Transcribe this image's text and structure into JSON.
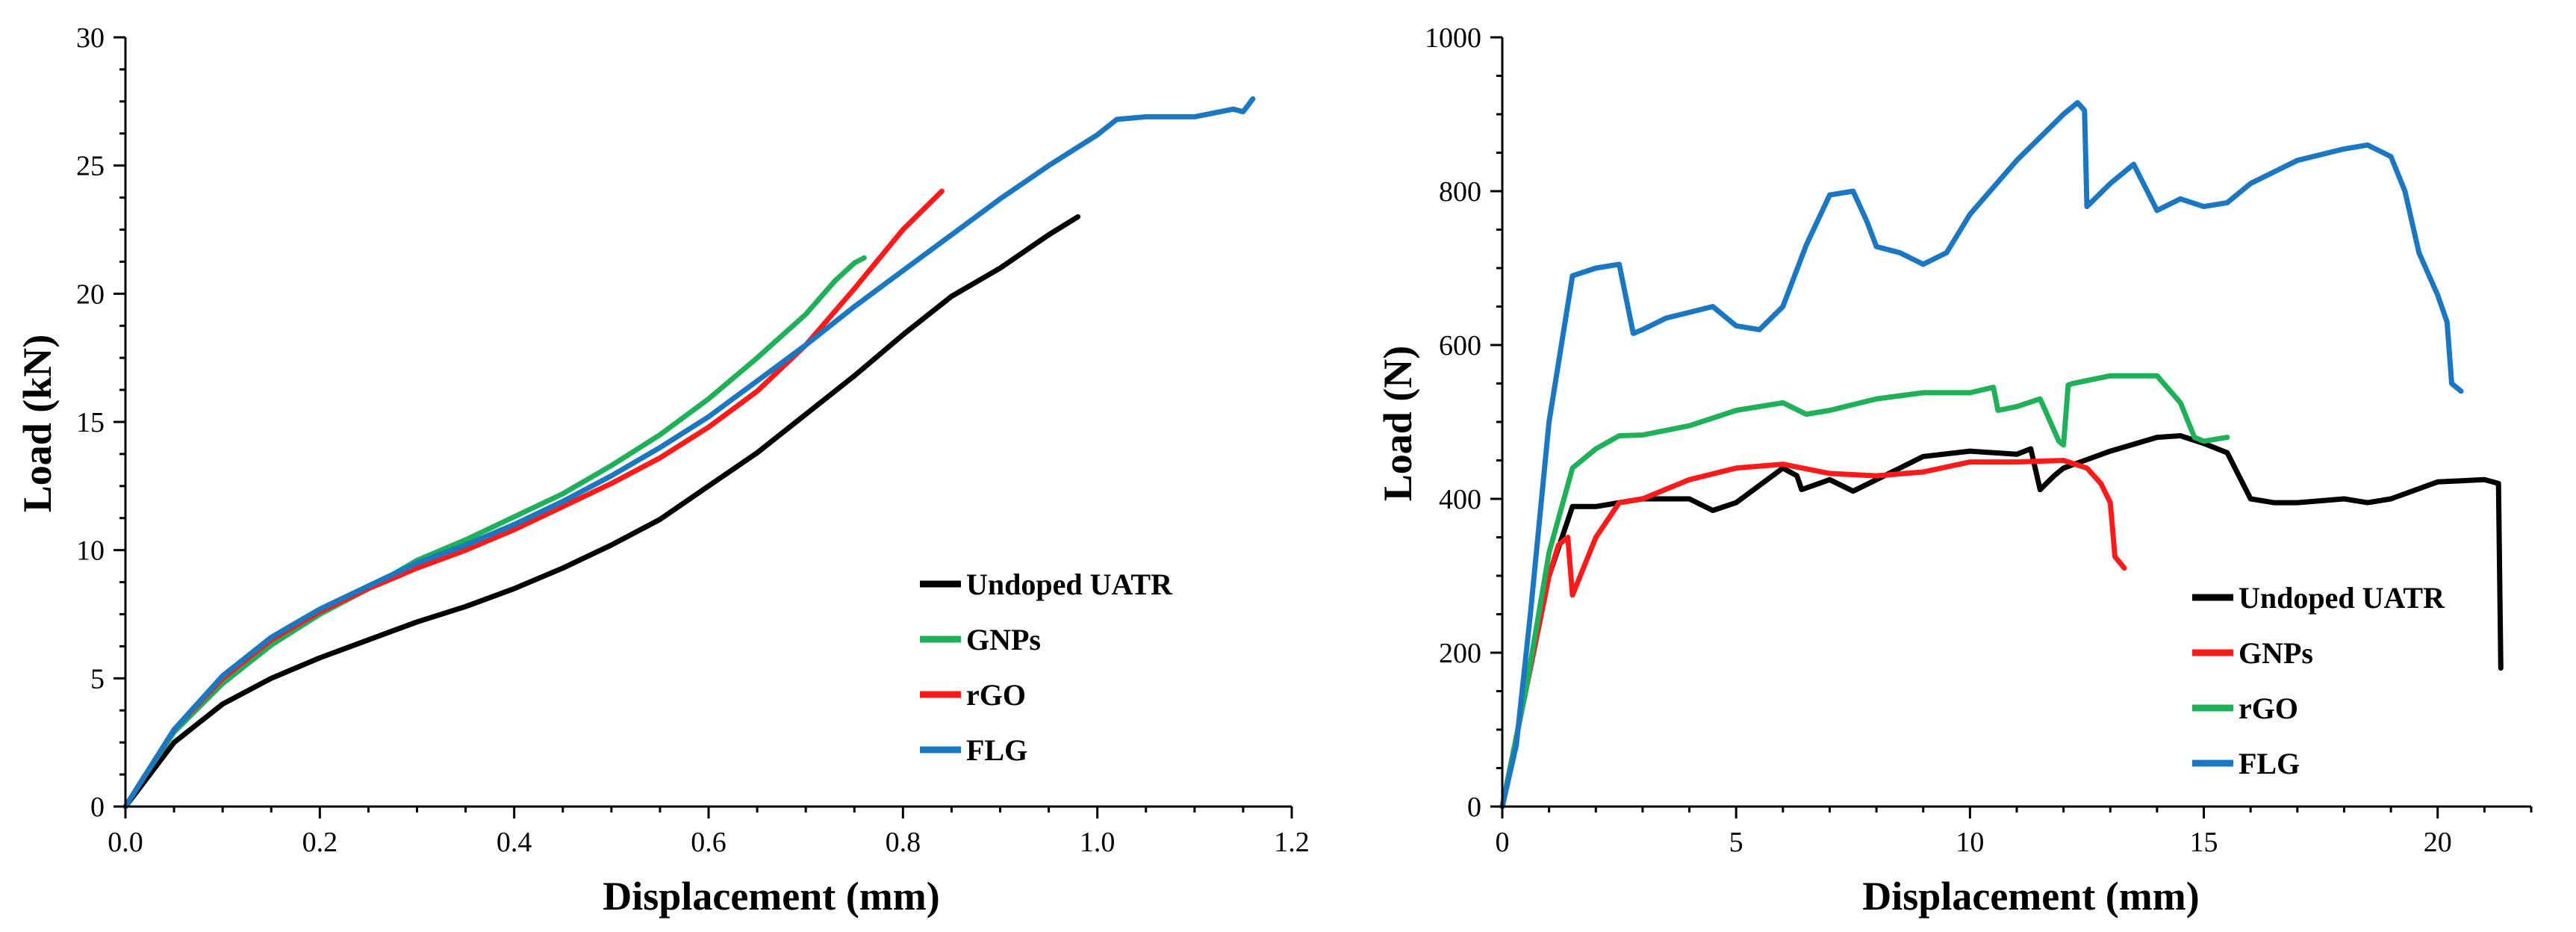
{
  "chart_data": [
    {
      "type": "line",
      "title": "",
      "xlabel": "Displacement (mm)",
      "ylabel": "Load (kN)",
      "xlim": [
        0,
        1.2
      ],
      "ylim": [
        0,
        30
      ],
      "xticks": [
        0,
        0.2,
        0.4,
        0.6,
        0.8,
        1.0,
        1.2
      ],
      "xtick_labels": [
        "0.0",
        "0.2",
        "0.4",
        "0.6",
        "0.8",
        "1.0",
        "1.2"
      ],
      "yticks": [
        0,
        5,
        10,
        15,
        20,
        25,
        30
      ],
      "ytick_labels": [
        "0",
        "5",
        "10",
        "15",
        "20",
        "25",
        "30"
      ],
      "grid": false,
      "legend_position": "bottom-right",
      "series": [
        {
          "name": "Undoped UATR",
          "color": "#000000",
          "x": [
            0,
            0.02,
            0.05,
            0.1,
            0.15,
            0.2,
            0.25,
            0.3,
            0.35,
            0.4,
            0.45,
            0.5,
            0.55,
            0.6,
            0.65,
            0.7,
            0.75,
            0.8,
            0.85,
            0.9,
            0.95,
            0.98
          ],
          "y": [
            0,
            1.0,
            2.5,
            4.0,
            5.0,
            5.8,
            6.5,
            7.2,
            7.8,
            8.5,
            9.3,
            10.2,
            11.2,
            12.5,
            13.8,
            15.3,
            16.8,
            18.4,
            19.9,
            21.0,
            22.3,
            23.0
          ]
        },
        {
          "name": "GNPs",
          "color": "#1fb15a",
          "x": [
            0,
            0.02,
            0.05,
            0.1,
            0.15,
            0.2,
            0.25,
            0.3,
            0.35,
            0.4,
            0.45,
            0.5,
            0.55,
            0.6,
            0.65,
            0.7,
            0.73,
            0.75,
            0.76
          ],
          "y": [
            0,
            1.2,
            2.9,
            4.8,
            6.3,
            7.5,
            8.5,
            9.6,
            10.4,
            11.3,
            12.2,
            13.3,
            14.5,
            15.9,
            17.5,
            19.2,
            20.5,
            21.2,
            21.4
          ]
        },
        {
          "name": "rGO",
          "color": "#ff1a1a",
          "x": [
            0,
            0.02,
            0.05,
            0.1,
            0.15,
            0.2,
            0.25,
            0.3,
            0.35,
            0.4,
            0.45,
            0.5,
            0.55,
            0.6,
            0.65,
            0.7,
            0.75,
            0.8,
            0.84
          ],
          "y": [
            0,
            1.2,
            3.0,
            5.0,
            6.5,
            7.6,
            8.5,
            9.3,
            10.0,
            10.8,
            11.7,
            12.6,
            13.6,
            14.8,
            16.2,
            18.0,
            20.2,
            22.5,
            24.0
          ]
        },
        {
          "name": "FLG",
          "color": "#1a78c2",
          "x": [
            0,
            0.02,
            0.05,
            0.1,
            0.15,
            0.2,
            0.25,
            0.3,
            0.35,
            0.4,
            0.45,
            0.5,
            0.55,
            0.6,
            0.65,
            0.7,
            0.75,
            0.8,
            0.85,
            0.9,
            0.95,
            1.0,
            1.02,
            1.05,
            1.1,
            1.14,
            1.15,
            1.16
          ],
          "y": [
            0,
            1.2,
            3.0,
            5.1,
            6.6,
            7.7,
            8.6,
            9.5,
            10.2,
            11.0,
            11.9,
            12.9,
            14.0,
            15.2,
            16.6,
            18.0,
            19.5,
            20.9,
            22.3,
            23.7,
            25.0,
            26.2,
            26.8,
            26.9,
            26.9,
            27.2,
            27.1,
            27.6
          ]
        }
      ]
    },
    {
      "type": "line",
      "title": "",
      "xlabel": "Displacement (mm)",
      "ylabel": "Load (N)",
      "xlim": [
        0,
        22
      ],
      "ylim": [
        0,
        1000
      ],
      "xticks": [
        0,
        5,
        10,
        15,
        20
      ],
      "xtick_labels": [
        "0",
        "5",
        "10",
        "15",
        "20"
      ],
      "yticks": [
        0,
        200,
        400,
        600,
        800,
        1000
      ],
      "ytick_labels": [
        "0",
        "200",
        "400",
        "600",
        "800",
        "1000"
      ],
      "grid": false,
      "legend_position": "bottom-right",
      "series": [
        {
          "name": "Undoped UATR",
          "color": "#000000",
          "x": [
            0,
            0.5,
            1.0,
            1.5,
            2.0,
            3.0,
            4.0,
            4.5,
            5.0,
            6.0,
            6.3,
            6.4,
            7.0,
            7.5,
            8.0,
            9.0,
            10.0,
            11.0,
            11.3,
            11.5,
            11.8,
            12.0,
            13.0,
            14.0,
            14.5,
            15.0,
            15.5,
            16.0,
            16.5,
            17.0,
            18.0,
            18.5,
            19.0,
            20.0,
            21.0,
            21.3,
            21.35
          ],
          "y": [
            0,
            150,
            300,
            390,
            390,
            400,
            400,
            385,
            395,
            440,
            430,
            412,
            425,
            410,
            425,
            455,
            462,
            458,
            465,
            412,
            430,
            440,
            462,
            480,
            482,
            472,
            460,
            400,
            395,
            395,
            400,
            395,
            400,
            422,
            425,
            420,
            180
          ]
        },
        {
          "name": "GNPs",
          "color": "#ff1a1a",
          "x": [
            0,
            0.5,
            1.0,
            1.2,
            1.4,
            1.5,
            2.0,
            2.5,
            3.0,
            4.0,
            5.0,
            6.0,
            7.0,
            8.0,
            9.0,
            10.0,
            11.0,
            12.0,
            12.5,
            12.8,
            13.0,
            13.1,
            13.3
          ],
          "y": [
            0,
            150,
            300,
            340,
            350,
            275,
            350,
            395,
            400,
            425,
            440,
            445,
            433,
            430,
            435,
            448,
            448,
            450,
            440,
            420,
            395,
            325,
            310
          ]
        },
        {
          "name": "rGO",
          "color": "#1fb15a",
          "x": [
            0,
            0.5,
            1.0,
            1.5,
            2.0,
            2.5,
            3.0,
            4.0,
            5.0,
            6.0,
            6.5,
            7.0,
            8.0,
            9.0,
            10.0,
            10.5,
            10.6,
            11.0,
            11.5,
            11.9,
            12.0,
            12.1,
            12.2,
            13.0,
            14.0,
            14.5,
            14.8,
            15.0,
            15.5
          ],
          "y": [
            0,
            150,
            330,
            440,
            465,
            482,
            483,
            495,
            515,
            525,
            510,
            515,
            530,
            538,
            538,
            545,
            515,
            520,
            530,
            475,
            470,
            548,
            550,
            560,
            560,
            525,
            480,
            475,
            480
          ]
        },
        {
          "name": "FLG",
          "color": "#1a78c2",
          "x": [
            0,
            0.3,
            0.6,
            1.0,
            1.5,
            2.0,
            2.5,
            2.8,
            3.0,
            3.5,
            4.5,
            5.0,
            5.5,
            6.0,
            6.5,
            7.0,
            7.5,
            7.8,
            8.0,
            8.5,
            9.0,
            9.5,
            10.0,
            11.0,
            12.0,
            12.3,
            12.45,
            12.5,
            13.0,
            13.5,
            14.0,
            14.5,
            15.0,
            15.5,
            16.0,
            17.0,
            18.0,
            18.5,
            19.0,
            19.3,
            19.6,
            20.0,
            20.2,
            20.3,
            20.5
          ],
          "y": [
            0,
            80,
            250,
            500,
            690,
            700,
            705,
            615,
            620,
            635,
            650,
            625,
            620,
            650,
            730,
            795,
            800,
            760,
            728,
            720,
            705,
            720,
            770,
            840,
            900,
            915,
            905,
            780,
            810,
            835,
            775,
            790,
            780,
            785,
            810,
            840,
            855,
            860,
            845,
            800,
            720,
            665,
            630,
            550,
            540
          ]
        }
      ]
    }
  ]
}
